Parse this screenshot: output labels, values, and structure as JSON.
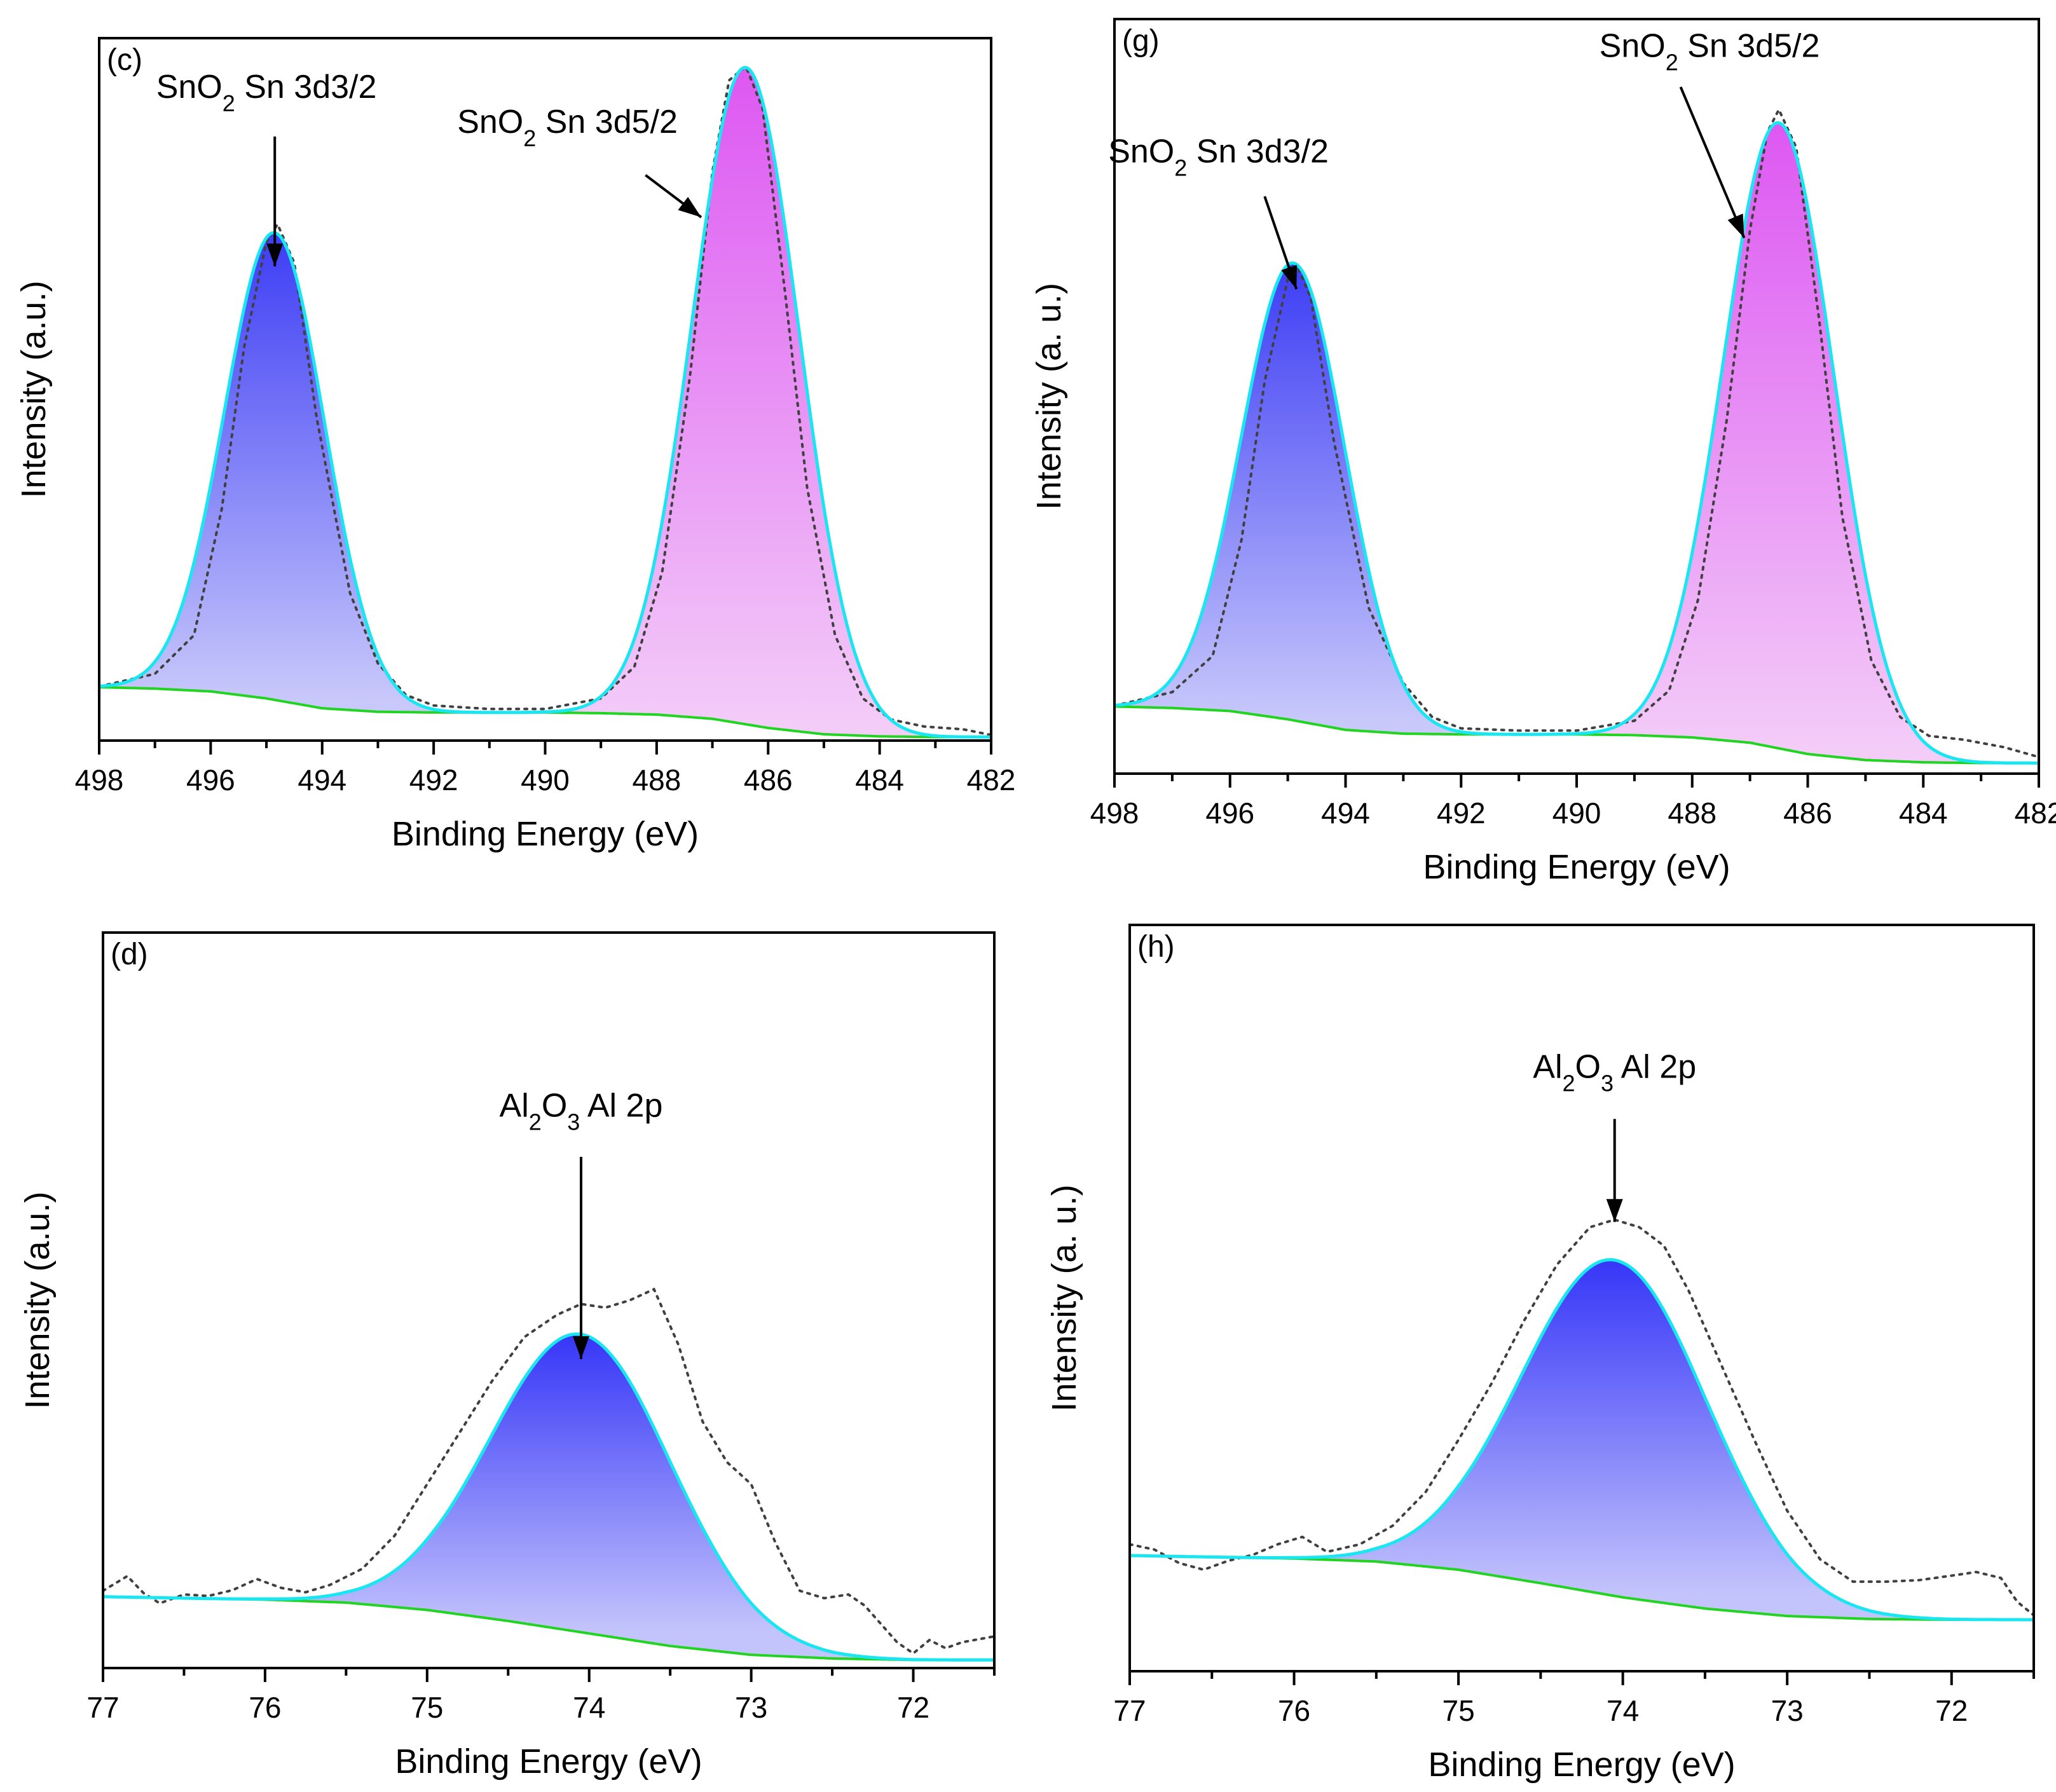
{
  "colors": {
    "frame": "#000000",
    "envelope": "#19e6f0",
    "background_line": "#20d420",
    "raw_data": "#404040",
    "sn_3d32_top": "#3d3df5",
    "sn_3d32_bottom": "#c8c8fb",
    "sn_3d52_top": "#dd57f2",
    "sn_3d52_bottom": "#f3ccf8",
    "al_2p_top": "#3636f8",
    "al_2p_bottom": "#c4c4fc"
  },
  "chart_data": [
    {
      "id": "c",
      "panel_label": "(c)",
      "type": "line",
      "xlabel": "Binding Energy (eV)",
      "ylabel": "Intensity (a.u.)",
      "xlim": [
        498,
        482
      ],
      "ylim": [
        0,
        100
      ],
      "x_ticks": [
        "498",
        "496",
        "494",
        "492",
        "490",
        "488",
        "486",
        "484",
        "482"
      ],
      "background": {
        "x": [
          498,
          497,
          496,
          495,
          494,
          493,
          492,
          491,
          490,
          489,
          488,
          487,
          486,
          485,
          484,
          483,
          482
        ],
        "y": [
          7.6,
          7.4,
          7.0,
          6.0,
          4.6,
          4.1,
          4.0,
          4.0,
          4.0,
          3.9,
          3.7,
          3.1,
          1.8,
          0.9,
          0.6,
          0.5,
          0.5
        ]
      },
      "peaks": [
        {
          "name": "SnO2 Sn 3d3/2",
          "label_main": "SnO",
          "label_sub": "2",
          "label_rest": " Sn 3d3/2",
          "center": 494.85,
          "height": 66.5,
          "width": 0.9,
          "fill": "blue"
        },
        {
          "name": "SnO2 Sn 3d5/2",
          "label_main": "SnO",
          "label_sub": "2",
          "label_rest": " Sn 3d5/2",
          "center": 486.4,
          "height": 93.5,
          "width": 0.96,
          "fill": "pink"
        }
      ],
      "raw_data": {
        "x": [
          498,
          497,
          496.3,
          495.8,
          495.4,
          495.0,
          494.8,
          494.5,
          494.1,
          493.5,
          493.0,
          492.5,
          492.0,
          491.0,
          490.0,
          489.0,
          488.4,
          487.9,
          487.4,
          487.0,
          486.7,
          486.4,
          486.1,
          485.7,
          485.3,
          484.8,
          484.3,
          483.8,
          483.2,
          482.5,
          482
        ],
        "y": [
          7.7,
          9.5,
          15.0,
          33.0,
          56.0,
          71.0,
          73.5,
          68.0,
          46.0,
          21.0,
          11.0,
          6.5,
          5.0,
          4.5,
          4.5,
          6.0,
          10.5,
          24.0,
          52.0,
          81.0,
          94.0,
          96.0,
          90.0,
          64.0,
          36.0,
          15.0,
          6.0,
          3.0,
          2.0,
          1.6,
          0.8
        ]
      },
      "annotations": [
        {
          "peak": 0,
          "text_x": 495.0,
          "text_y": 91.5,
          "tip_x": 494.85,
          "tip_y": 67.5,
          "start_x": 494.85,
          "start_y": 86.0
        },
        {
          "peak": 1,
          "text_x": 489.6,
          "text_y": 86.5,
          "tip_x": 487.2,
          "tip_y": 74.5,
          "start_x": 488.2,
          "start_y": 80.5
        }
      ]
    },
    {
      "id": "g",
      "panel_label": "(g)",
      "type": "line",
      "xlabel": "Binding Energy (eV)",
      "ylabel": "Intensity (a. u.)",
      "xlim": [
        498,
        482
      ],
      "ylim": [
        0,
        100
      ],
      "x_ticks": [
        "498",
        "496",
        "494",
        "492",
        "490",
        "488",
        "486",
        "484",
        "482"
      ],
      "background": {
        "x": [
          498,
          497,
          496,
          495,
          494,
          493,
          492,
          491,
          490,
          489,
          488,
          487,
          486,
          485,
          484,
          483,
          482
        ],
        "y": [
          8.9,
          8.7,
          8.3,
          7.2,
          5.8,
          5.3,
          5.2,
          5.2,
          5.2,
          5.1,
          4.8,
          4.1,
          2.6,
          1.8,
          1.5,
          1.4,
          1.4
        ]
      },
      "peaks": [
        {
          "name": "SnO2 Sn 3d3/2",
          "label_main": "SnO",
          "label_sub": "2",
          "label_rest": " Sn 3d3/2",
          "center": 494.9,
          "height": 60.6,
          "width": 0.9,
          "fill": "blue"
        },
        {
          "name": "SnO2 Sn 3d5/2",
          "label_main": "SnO",
          "label_sub": "2",
          "label_rest": " Sn 3d5/2",
          "center": 486.5,
          "height": 82.9,
          "width": 0.96,
          "fill": "pink"
        }
      ],
      "raw_data": {
        "x": [
          498,
          497,
          496.3,
          495.8,
          495.4,
          495.0,
          494.85,
          494.6,
          494.2,
          493.6,
          493.0,
          492.5,
          492.0,
          491.0,
          490.0,
          489.0,
          488.4,
          487.9,
          487.4,
          487.0,
          486.7,
          486.5,
          486.2,
          485.8,
          485.4,
          484.9,
          484.4,
          483.9,
          483.3,
          482.6,
          482
        ],
        "y": [
          9.0,
          10.8,
          15.6,
          31.0,
          52.0,
          65.5,
          67.5,
          63.0,
          44.0,
          22.0,
          12.0,
          7.5,
          6.0,
          5.7,
          5.7,
          7.0,
          11.0,
          23.0,
          47.0,
          72.0,
          85.0,
          88.0,
          83.0,
          60.0,
          34.0,
          15.0,
          7.5,
          5.0,
          4.5,
          3.5,
          2.2
        ]
      },
      "annotations": [
        {
          "peak": 0,
          "text_x": 496.2,
          "text_y": 81.0,
          "tip_x": 494.85,
          "tip_y": 64.2,
          "start_x": 495.4,
          "start_y": 76.5
        },
        {
          "peak": 1,
          "text_x": 487.7,
          "text_y": 95.0,
          "tip_x": 487.1,
          "tip_y": 71.0,
          "start_x": 488.2,
          "start_y": 91.0
        }
      ]
    },
    {
      "id": "d",
      "panel_label": "(d)",
      "type": "line",
      "xlabel": "Binding Energy (eV)",
      "ylabel": "Intensity (a.u.)",
      "xlim": [
        77,
        71.5
      ],
      "ylim": [
        0,
        100
      ],
      "x_ticks": [
        "77",
        "76",
        "75",
        "74",
        "73",
        "72"
      ],
      "background": {
        "x": [
          77,
          76.5,
          76,
          75.5,
          75,
          74.5,
          74,
          73.5,
          73,
          72.5,
          72,
          71.5
        ],
        "y": [
          9.7,
          9.5,
          9.3,
          8.9,
          7.9,
          6.4,
          4.7,
          3.0,
          1.8,
          1.3,
          1.1,
          1.1
        ]
      },
      "peaks": [
        {
          "name": "Al2O3 Al 2p",
          "label_main": "Al",
          "label_sub": "2",
          "label_mid": "O",
          "label_sub2": "3",
          "label_rest": " Al 2p",
          "center": 74.05,
          "height": 40.5,
          "width": 0.56,
          "fill": "blue"
        }
      ],
      "raw_data": {
        "x": [
          77,
          76.85,
          76.75,
          76.65,
          76.5,
          76.35,
          76.2,
          76.05,
          75.9,
          75.75,
          75.6,
          75.4,
          75.2,
          75.0,
          74.8,
          74.6,
          74.4,
          74.2,
          74.05,
          73.9,
          73.75,
          73.6,
          73.45,
          73.3,
          73.15,
          73.0,
          72.85,
          72.7,
          72.55,
          72.4,
          72.3,
          72.2,
          72.1,
          72.0,
          71.9,
          71.8,
          71.7,
          71.5
        ],
        "y": [
          10.5,
          12.5,
          10.2,
          8.8,
          10.0,
          9.8,
          10.6,
          12.1,
          10.9,
          10.3,
          11.3,
          13.5,
          18.0,
          25.0,
          32.0,
          39.0,
          45.0,
          48.0,
          49.5,
          49.0,
          50.0,
          51.5,
          44.0,
          33.5,
          28.0,
          25.0,
          17.0,
          10.5,
          9.5,
          10.0,
          8.5,
          6.0,
          3.5,
          2.0,
          3.8,
          2.7,
          3.5,
          4.3
        ]
      },
      "annotations": [
        {
          "peak": 0,
          "text_x": 74.05,
          "text_y": 75.0,
          "tip_x": 74.05,
          "tip_y": 42.0,
          "start_x": 74.05,
          "start_y": 69.5
        }
      ]
    },
    {
      "id": "h",
      "panel_label": "(h)",
      "type": "line",
      "xlabel": "Binding Energy (eV)",
      "ylabel": "Intensity (a. u.)",
      "xlim": [
        77,
        71.5
      ],
      "ylim": [
        0,
        100
      ],
      "x_ticks": [
        "77",
        "76",
        "75",
        "74",
        "73",
        "72"
      ],
      "background": {
        "x": [
          77,
          76.5,
          76,
          75.5,
          75,
          74.5,
          74,
          73.5,
          73,
          72.5,
          72,
          71.5
        ],
        "y": [
          15.5,
          15.3,
          15.1,
          14.7,
          13.6,
          11.8,
          9.9,
          8.4,
          7.4,
          7.0,
          6.9,
          6.9
        ]
      },
      "peaks": [
        {
          "name": "Al2O3 Al 2p",
          "label_main": "Al",
          "label_sub": "2",
          "label_mid": "O",
          "label_sub2": "3",
          "label_rest": " Al 2p",
          "center": 74.05,
          "height": 45.0,
          "width": 0.57,
          "fill": "blue"
        }
      ],
      "raw_data": {
        "x": [
          77,
          76.85,
          76.7,
          76.55,
          76.4,
          76.25,
          76.1,
          75.95,
          75.8,
          75.6,
          75.4,
          75.2,
          75.0,
          74.8,
          74.6,
          74.4,
          74.2,
          74.05,
          73.9,
          73.75,
          73.6,
          73.4,
          73.2,
          73.0,
          72.8,
          72.6,
          72.4,
          72.2,
          72.0,
          71.85,
          71.7,
          71.6,
          71.5
        ],
        "y": [
          17.0,
          16.3,
          14.5,
          13.6,
          14.8,
          15.6,
          17.0,
          18.0,
          16.0,
          17.0,
          19.5,
          24.0,
          31.0,
          38.5,
          47.0,
          54.5,
          59.5,
          60.5,
          59.5,
          57.0,
          51.0,
          41.0,
          31.0,
          21.5,
          15.0,
          12.0,
          12.0,
          12.2,
          12.8,
          13.3,
          12.5,
          9.3,
          7.5
        ]
      },
      "annotations": [
        {
          "peak": 0,
          "text_x": 74.05,
          "text_y": 79.5,
          "tip_x": 74.05,
          "tip_y": 60.2,
          "start_x": 74.05,
          "start_y": 74.0
        }
      ]
    }
  ]
}
